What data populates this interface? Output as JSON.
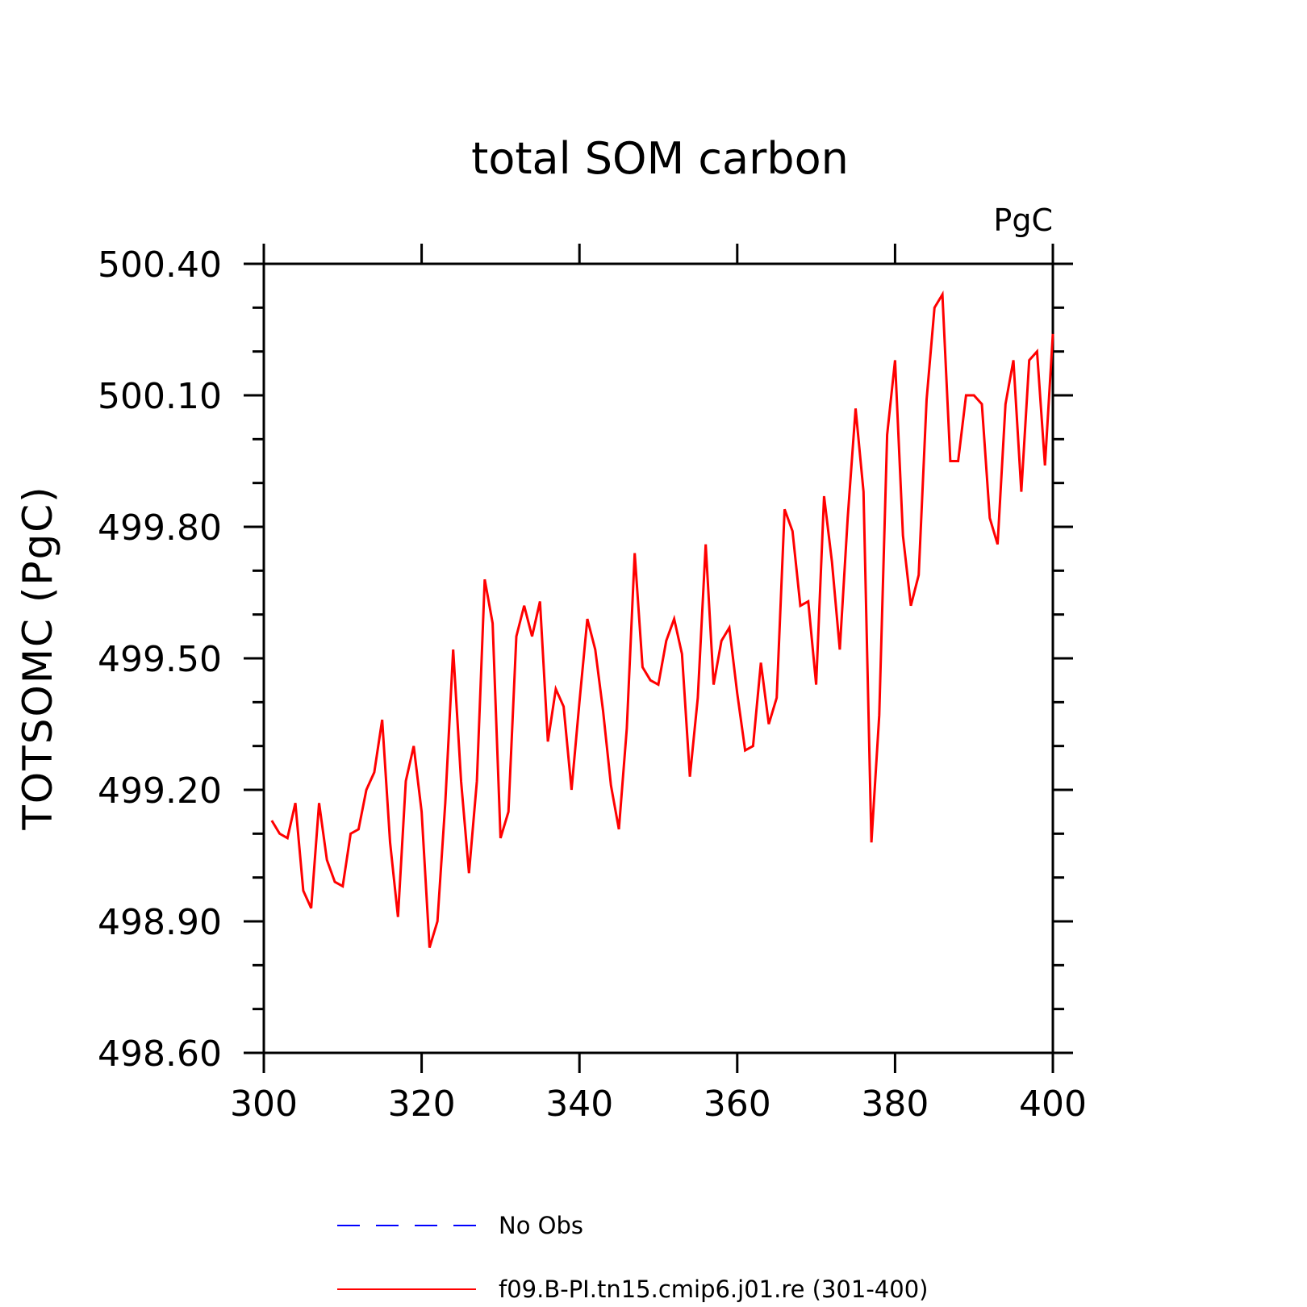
{
  "chart_data": {
    "type": "line",
    "title": "total SOM carbon",
    "ylabel": "TOTSOMC   (PgC)",
    "units": "PgC",
    "xlim": [
      300,
      400
    ],
    "ylim": [
      498.6,
      500.4
    ],
    "xticks": [
      "300",
      "320",
      "340",
      "360",
      "380",
      "400"
    ],
    "yticks": [
      "498.60",
      "498.90",
      "499.20",
      "499.50",
      "499.80",
      "500.10",
      "500.40"
    ],
    "legend": [
      {
        "label": "No Obs",
        "color": "#0000ff",
        "style": "dashed"
      },
      {
        "label": "f09.B-PI.tn15.cmip6.j01.re (301-400)",
        "color": "#ff0000",
        "style": "solid"
      }
    ],
    "series": [
      {
        "name": "f09.B-PI.tn15.cmip6.j01.re (301-400)",
        "color": "#ff0000",
        "x": [
          301,
          302,
          303,
          304,
          305,
          306,
          307,
          308,
          309,
          310,
          311,
          312,
          313,
          314,
          315,
          316,
          317,
          318,
          319,
          320,
          321,
          322,
          323,
          324,
          325,
          326,
          327,
          328,
          329,
          330,
          331,
          332,
          333,
          334,
          335,
          336,
          337,
          338,
          339,
          340,
          341,
          342,
          343,
          344,
          345,
          346,
          347,
          348,
          349,
          350,
          351,
          352,
          353,
          354,
          355,
          356,
          357,
          358,
          359,
          360,
          361,
          362,
          363,
          364,
          365,
          366,
          367,
          368,
          369,
          370,
          371,
          372,
          373,
          374,
          375,
          376,
          377,
          378,
          379,
          380,
          381,
          382,
          383,
          384,
          385,
          386,
          387,
          388,
          389,
          390,
          391,
          392,
          393,
          394,
          395,
          396,
          397,
          398,
          399,
          400
        ],
        "values": [
          499.13,
          499.1,
          499.09,
          499.17,
          498.97,
          498.93,
          499.17,
          499.04,
          498.99,
          498.98,
          499.1,
          499.11,
          499.2,
          499.24,
          499.36,
          499.08,
          498.91,
          499.22,
          499.3,
          499.15,
          498.84,
          498.9,
          499.17,
          499.52,
          499.22,
          499.01,
          499.22,
          499.68,
          499.58,
          499.09,
          499.15,
          499.55,
          499.62,
          499.55,
          499.63,
          499.31,
          499.43,
          499.39,
          499.2,
          499.4,
          499.59,
          499.52,
          499.38,
          499.21,
          499.11,
          499.34,
          499.74,
          499.48,
          499.45,
          499.44,
          499.54,
          499.59,
          499.51,
          499.23,
          499.41,
          499.76,
          499.44,
          499.54,
          499.57,
          499.42,
          499.29,
          499.3,
          499.49,
          499.35,
          499.41,
          499.84,
          499.79,
          499.62,
          499.63,
          499.44,
          499.87,
          499.72,
          499.52,
          499.82,
          500.07,
          499.88,
          499.08,
          499.37,
          500.01,
          500.18,
          499.78,
          499.62,
          499.69,
          500.09,
          500.3,
          500.33,
          499.95,
          499.95,
          500.1,
          500.1,
          500.08,
          499.82,
          499.76,
          500.08,
          500.18,
          499.88,
          500.18,
          500.2,
          499.94,
          500.24
        ]
      }
    ]
  }
}
